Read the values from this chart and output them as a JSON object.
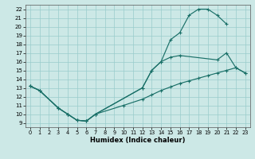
{
  "xlabel": "Humidex (Indice chaleur)",
  "bg_color": "#cce8e6",
  "grid_color": "#99cccc",
  "line_color": "#1a7068",
  "xlim": [
    -0.5,
    23.5
  ],
  "ylim": [
    8.5,
    22.5
  ],
  "xticks": [
    0,
    1,
    2,
    3,
    4,
    5,
    6,
    7,
    8,
    9,
    10,
    11,
    12,
    13,
    14,
    15,
    16,
    17,
    18,
    19,
    20,
    21,
    22,
    23
  ],
  "yticks": [
    9,
    10,
    11,
    12,
    13,
    14,
    15,
    16,
    17,
    18,
    19,
    20,
    21,
    22
  ],
  "curve1_x": [
    0,
    1,
    3,
    4,
    5,
    6,
    7,
    12,
    13,
    14,
    15,
    16,
    17,
    18,
    19,
    20,
    21
  ],
  "curve1_y": [
    13.2,
    12.7,
    10.7,
    10.0,
    9.3,
    9.2,
    10.0,
    13.0,
    15.0,
    16.0,
    18.5,
    19.3,
    21.3,
    22.0,
    22.0,
    21.3,
    20.3
  ],
  "curve2_x": [
    0,
    1,
    3,
    4,
    5,
    6,
    7,
    12,
    13,
    14,
    15,
    16,
    20,
    21,
    22,
    23
  ],
  "curve2_y": [
    13.2,
    12.7,
    10.7,
    10.0,
    9.3,
    9.2,
    10.0,
    13.0,
    15.0,
    16.0,
    16.5,
    16.7,
    16.2,
    17.0,
    15.3,
    14.7
  ],
  "curve3_x": [
    0,
    1,
    3,
    4,
    5,
    6,
    7,
    10,
    12,
    13,
    14,
    15,
    16,
    17,
    18,
    19,
    20,
    21,
    22,
    23
  ],
  "curve3_y": [
    13.2,
    12.7,
    10.7,
    10.0,
    9.3,
    9.2,
    10.0,
    11.0,
    11.7,
    12.2,
    12.7,
    13.1,
    13.5,
    13.8,
    14.1,
    14.4,
    14.7,
    15.0,
    15.3,
    14.7
  ]
}
